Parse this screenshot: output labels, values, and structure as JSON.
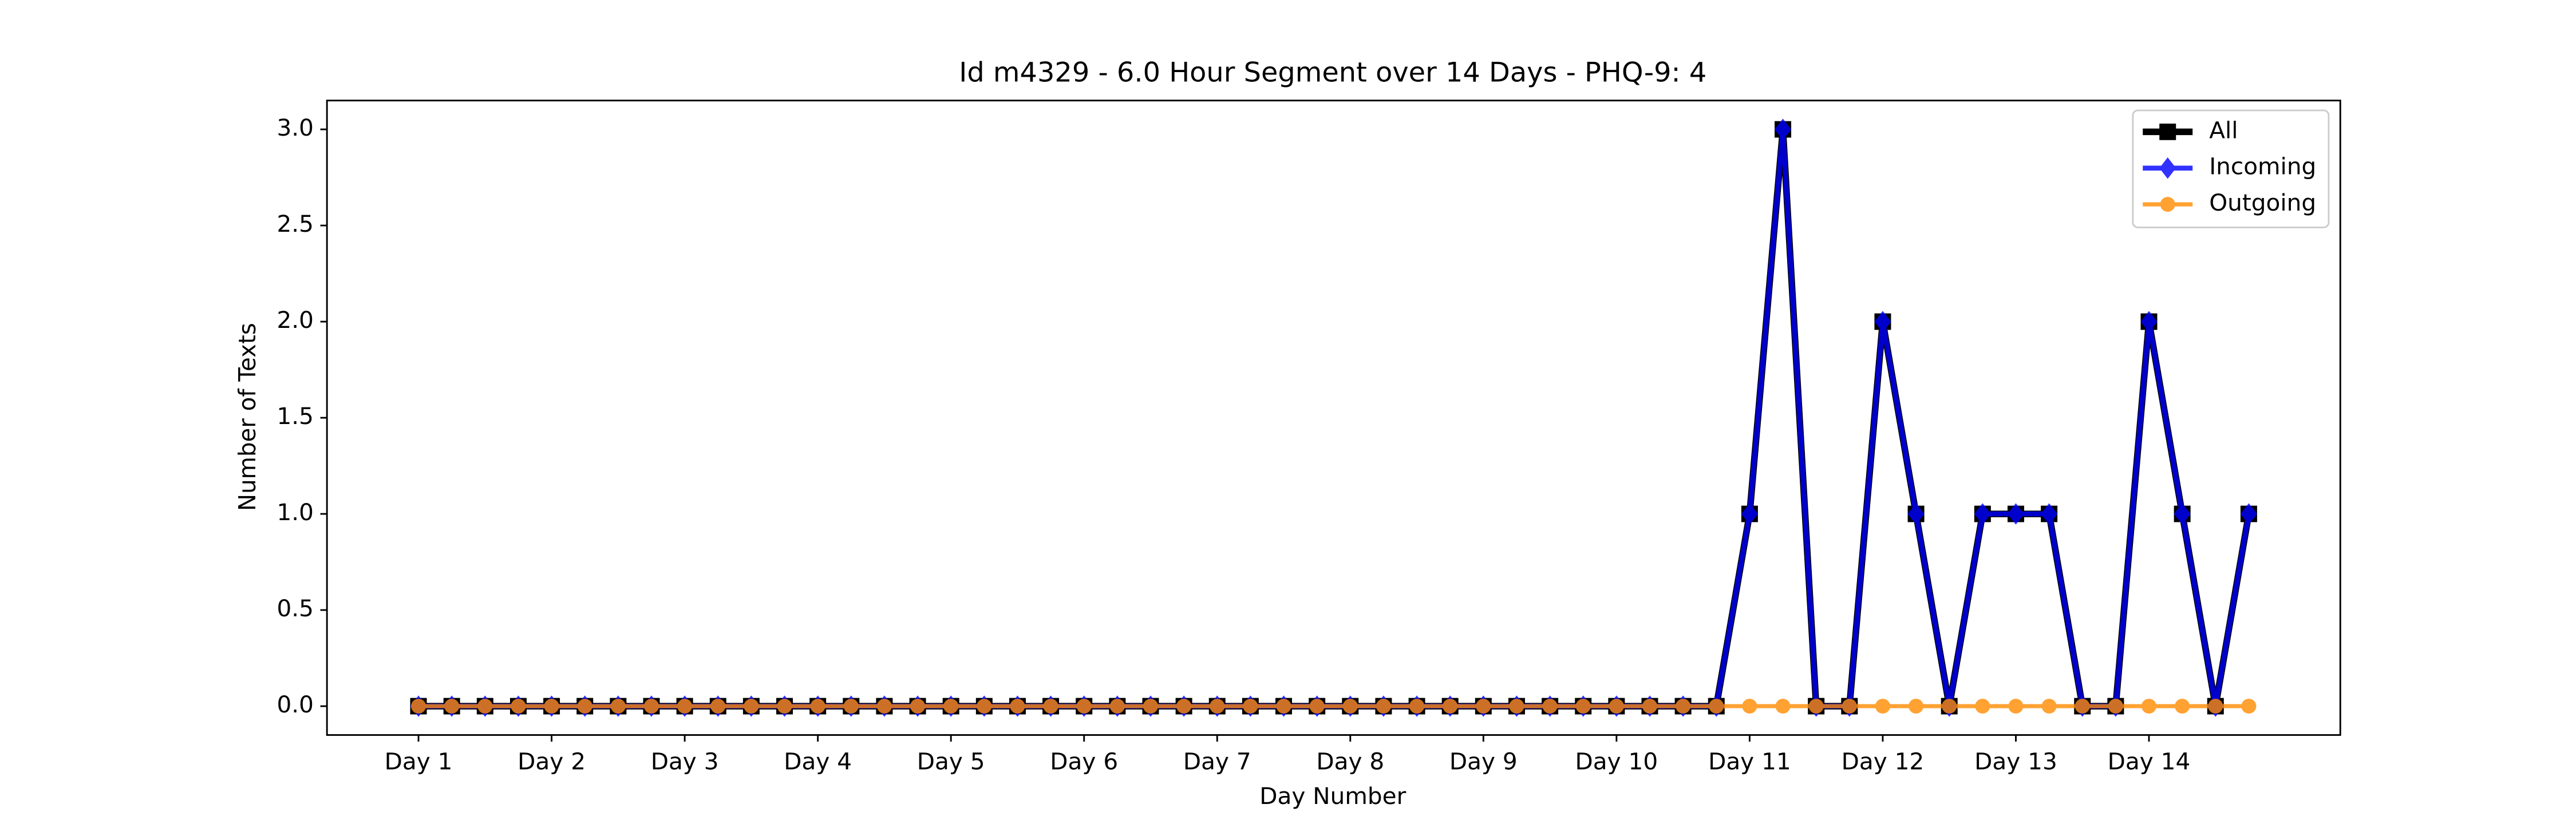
{
  "chart_data": {
    "type": "line",
    "title": "Id m4329 - 6.0 Hour Segment over 14 Days - PHQ-9: 4",
    "x_label": "Day Number",
    "y_label": "Number of Texts",
    "categories": [
      "Day 1",
      null,
      null,
      null,
      "Day 2",
      null,
      null,
      null,
      "Day 3",
      null,
      null,
      null,
      "Day 4",
      null,
      null,
      null,
      "Day 5",
      null,
      null,
      null,
      "Day 6",
      null,
      null,
      null,
      "Day 7",
      null,
      null,
      null,
      "Day 8",
      null,
      null,
      null,
      "Day 9",
      null,
      null,
      null,
      "Day 10",
      null,
      null,
      null,
      "Day 11",
      null,
      null,
      null,
      "Day 12",
      null,
      null,
      null,
      "Day 13",
      null,
      null,
      null,
      "Day 14",
      null,
      null,
      null
    ],
    "series": [
      {
        "name": "All",
        "color": "#000000",
        "marker": "square",
        "values": [
          0,
          0,
          0,
          0,
          0,
          0,
          0,
          0,
          0,
          0,
          0,
          0,
          0,
          0,
          0,
          0,
          0,
          0,
          0,
          0,
          0,
          0,
          0,
          0,
          0,
          0,
          0,
          0,
          0,
          0,
          0,
          0,
          0,
          0,
          0,
          0,
          0,
          0,
          0,
          0,
          1,
          3,
          0,
          0,
          2,
          1,
          0,
          1,
          1,
          1,
          0,
          0,
          2,
          1,
          0,
          1
        ]
      },
      {
        "name": "Incoming",
        "color": "#0000ff",
        "marker": "diamond",
        "values": [
          0,
          0,
          0,
          0,
          0,
          0,
          0,
          0,
          0,
          0,
          0,
          0,
          0,
          0,
          0,
          0,
          0,
          0,
          0,
          0,
          0,
          0,
          0,
          0,
          0,
          0,
          0,
          0,
          0,
          0,
          0,
          0,
          0,
          0,
          0,
          0,
          0,
          0,
          0,
          0,
          1,
          3,
          0,
          0,
          2,
          1,
          0,
          1,
          1,
          1,
          0,
          0,
          2,
          1,
          0,
          1
        ]
      },
      {
        "name": "Outgoing",
        "color": "#ff8c00",
        "marker": "circle",
        "values": [
          0,
          0,
          0,
          0,
          0,
          0,
          0,
          0,
          0,
          0,
          0,
          0,
          0,
          0,
          0,
          0,
          0,
          0,
          0,
          0,
          0,
          0,
          0,
          0,
          0,
          0,
          0,
          0,
          0,
          0,
          0,
          0,
          0,
          0,
          0,
          0,
          0,
          0,
          0,
          0,
          0,
          0,
          0,
          0,
          0,
          0,
          0,
          0,
          0,
          0,
          0,
          0,
          0,
          0,
          0,
          0
        ]
      }
    ],
    "ylim": [
      -0.15,
      3.15
    ],
    "yticks": [
      {
        "value": 0,
        "label": "0.0"
      },
      {
        "value": 0.5,
        "label": "0.5"
      },
      {
        "value": 1,
        "label": "1.0"
      },
      {
        "value": 1.5,
        "label": "1.5"
      },
      {
        "value": 2,
        "label": "2.0"
      },
      {
        "value": 2.5,
        "label": "2.5"
      },
      {
        "value": 3,
        "label": "3.0"
      }
    ],
    "legend": "upper right"
  }
}
